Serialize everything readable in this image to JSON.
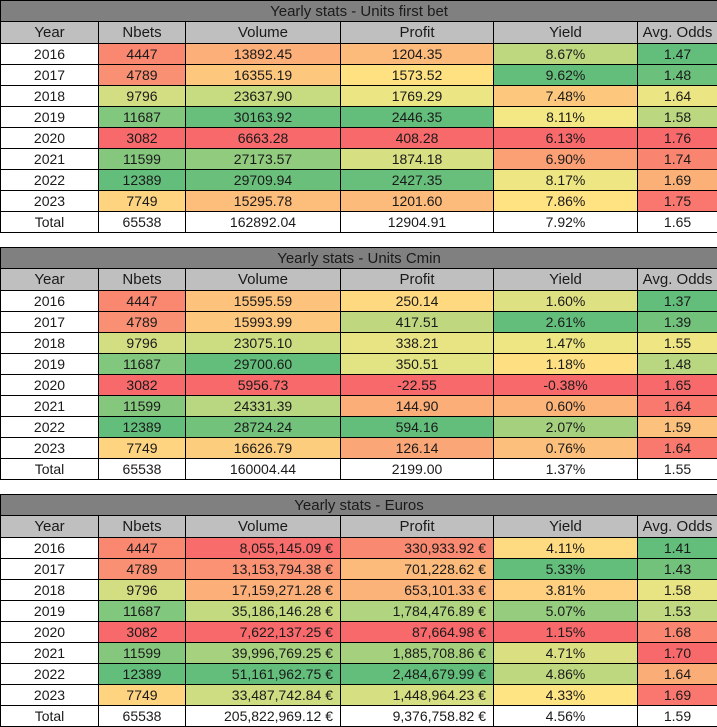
{
  "palette": {
    "title_bg": "#808080",
    "header_bg": "#BFBFBF",
    "border": "#000000",
    "text": "#1A1A1A",
    "scale_min_red": "#F8696B",
    "scale_mid_yellow": "#FFEB84",
    "scale_max_green": "#63BE7B",
    "plain_row_bg": "#FFFFFF"
  },
  "tables": [
    {
      "title": "Yearly stats - Units first bet",
      "columns": [
        "Year",
        "Nbets",
        "Volume",
        "Profit",
        "Yield",
        "Avg. Odds"
      ],
      "align": [
        "center",
        "center",
        "center",
        "center",
        "center",
        "center"
      ],
      "rows": [
        {
          "values": [
            "2016",
            "4447",
            "13892.45",
            "1204.35",
            "8.67%",
            "1.47"
          ],
          "colors": [
            "#FFFFFF",
            "#FA8871",
            "#FCAF79",
            "#FCBB7B",
            "#BED880",
            "#63BE7B"
          ]
        },
        {
          "values": [
            "2017",
            "4789",
            "16355.19",
            "1573.52",
            "9.62%",
            "1.48"
          ],
          "colors": [
            "#FFFFFF",
            "#FA9073",
            "#FDC87D",
            "#FFE182",
            "#63BE7B",
            "#6BC07B"
          ]
        },
        {
          "values": [
            "2018",
            "9796",
            "23637.90",
            "1769.29",
            "7.48%",
            "1.64"
          ],
          "colors": [
            "#FFFFFF",
            "#D3DE82",
            "#C7DB81",
            "#EBE583",
            "#FDC87D",
            "#EBE583"
          ]
        },
        {
          "values": [
            "2019",
            "11687",
            "30163.92",
            "2446.35",
            "8.11%",
            "1.58"
          ],
          "colors": [
            "#FFFFFF",
            "#81C77D",
            "#67BF7B",
            "#63BE7B",
            "#F3E883",
            "#BBD780"
          ]
        },
        {
          "values": [
            "2020",
            "3082",
            "6663.28",
            "408.28",
            "6.13%",
            "1.76"
          ],
          "colors": [
            "#FFFFFF",
            "#F8696B",
            "#F8696B",
            "#F8696B",
            "#F8696B",
            "#F8696B"
          ]
        },
        {
          "values": [
            "2021",
            "11599",
            "27173.57",
            "1874.18",
            "6.90%",
            "1.74"
          ],
          "colors": [
            "#FFFFFF",
            "#85C87D",
            "#91CB7E",
            "#D6DF82",
            "#FB9F75",
            "#F98470"
          ]
        },
        {
          "values": [
            "2022",
            "12389",
            "29709.94",
            "2427.35",
            "8.17%",
            "1.69"
          ],
          "colors": [
            "#FFFFFF",
            "#63BE7B",
            "#6AC07B",
            "#67BF7B",
            "#EDE683",
            "#FBB078"
          ]
        },
        {
          "values": [
            "2023",
            "7749",
            "15295.78",
            "1201.60",
            "7.86%",
            "1.75"
          ],
          "colors": [
            "#FFFFFF",
            "#FED480",
            "#FDBD7B",
            "#FCBB7B",
            "#FFE282",
            "#F9776E"
          ]
        },
        {
          "values": [
            "Total",
            "65538",
            "162892.04",
            "12904.91",
            "7.92%",
            "1.65"
          ],
          "colors": [
            "#FFFFFF",
            "#FFFFFF",
            "#FFFFFF",
            "#FFFFFF",
            "#FFFFFF",
            "#FFFFFF"
          ]
        }
      ]
    },
    {
      "title": "Yearly stats - Units Cmin",
      "columns": [
        "Year",
        "Nbets",
        "Volume",
        "Profit",
        "Yield",
        "Avg. Odds"
      ],
      "align": [
        "center",
        "center",
        "center",
        "center",
        "center",
        "center"
      ],
      "rows": [
        {
          "values": [
            "2016",
            "4447",
            "15595.59",
            "250.14",
            "1.60%",
            "1.37"
          ],
          "colors": [
            "#FFFFFF",
            "#FA8871",
            "#FDC37C",
            "#FED980",
            "#DEE182",
            "#63BE7B"
          ]
        },
        {
          "values": [
            "2017",
            "4789",
            "15993.99",
            "417.51",
            "2.61%",
            "1.39"
          ],
          "colors": [
            "#FFFFFF",
            "#FA9073",
            "#FDC77D",
            "#BFD880",
            "#63BE7B",
            "#72C27C"
          ]
        },
        {
          "values": [
            "2018",
            "9796",
            "23075.10",
            "338.21",
            "1.47%",
            "1.55"
          ],
          "colors": [
            "#FFFFFF",
            "#D3DE82",
            "#CCDC81",
            "#E8E483",
            "#EDE683",
            "#EFE683"
          ]
        },
        {
          "values": [
            "2019",
            "11687",
            "29700.60",
            "350.51",
            "1.18%",
            "1.48"
          ],
          "colors": [
            "#FFFFFF",
            "#81C77D",
            "#63BE7B",
            "#E2E382",
            "#FEE082",
            "#B9D780"
          ]
        },
        {
          "values": [
            "2020",
            "3082",
            "5956.73",
            "-22.55",
            "-0.38%",
            "1.65"
          ],
          "colors": [
            "#FFFFFF",
            "#F8696B",
            "#F8696B",
            "#F8696B",
            "#F8696B",
            "#F8696B"
          ]
        },
        {
          "values": [
            "2021",
            "11599",
            "24331.39",
            "144.90",
            "0.60%",
            "1.64"
          ],
          "colors": [
            "#FFFFFF",
            "#85C87D",
            "#B8D780",
            "#FCAE78",
            "#FCB479",
            "#F9796E"
          ]
        },
        {
          "values": [
            "2022",
            "12389",
            "28724.24",
            "594.16",
            "2.07%",
            "1.59"
          ],
          "colors": [
            "#FFFFFF",
            "#63BE7B",
            "#72C27C",
            "#63BE7B",
            "#A5D17F",
            "#FCC17C"
          ]
        },
        {
          "values": [
            "2023",
            "7749",
            "16626.79",
            "126.14",
            "0.76%",
            "1.64"
          ],
          "colors": [
            "#FFFFFF",
            "#FED480",
            "#FDCD7E",
            "#FBA677",
            "#FDC07C",
            "#F9796E"
          ]
        },
        {
          "values": [
            "Total",
            "65538",
            "160004.44",
            "2199.00",
            "1.37%",
            "1.55"
          ],
          "colors": [
            "#FFFFFF",
            "#FFFFFF",
            "#FFFFFF",
            "#FFFFFF",
            "#FFFFFF",
            "#FFFFFF"
          ]
        }
      ]
    },
    {
      "title": "Yearly stats - Euros",
      "columns": [
        "Year",
        "Nbets",
        "Volume",
        "Profit",
        "Yield",
        "Avg. Odds"
      ],
      "align": [
        "center",
        "center",
        "right",
        "right",
        "center",
        "center"
      ],
      "rows": [
        {
          "values": [
            "2016",
            "4447",
            "8,055,145.09 €",
            "330,933.92 €",
            "4.11%",
            "1.41"
          ],
          "colors": [
            "#FFFFFF",
            "#FA8871",
            "#F86C6C",
            "#FA8971",
            "#FEDB81",
            "#63BE7B"
          ]
        },
        {
          "values": [
            "2017",
            "4789",
            "13,153,794.38 €",
            "701,228.62 €",
            "5.33%",
            "1.43"
          ],
          "colors": [
            "#FFFFFF",
            "#FA9073",
            "#FA9273",
            "#FCBA7B",
            "#63BE7B",
            "#72C27C"
          ]
        },
        {
          "values": [
            "2018",
            "9796",
            "17,159,271.28 €",
            "653,101.33 €",
            "3.81%",
            "1.58"
          ],
          "colors": [
            "#FFFFFF",
            "#D3DE82",
            "#FCAF79",
            "#FCB379",
            "#FED07F",
            "#E8E483"
          ]
        },
        {
          "values": [
            "2019",
            "11687",
            "35,186,146.28 €",
            "1,784,476.89 €",
            "5.07%",
            "1.53"
          ],
          "colors": [
            "#FFFFFF",
            "#81C77D",
            "#C3DA81",
            "#B0D480",
            "#95CC7E",
            "#C1D980"
          ]
        },
        {
          "values": [
            "2020",
            "3082",
            "7,622,137.25 €",
            "87,664.98 €",
            "1.15%",
            "1.68"
          ],
          "colors": [
            "#FFFFFF",
            "#F8696B",
            "#F8696B",
            "#F8696B",
            "#F8696B",
            "#FA8671"
          ]
        },
        {
          "values": [
            "2021",
            "11599",
            "39,996,769.25 €",
            "1,885,708.86 €",
            "4.71%",
            "1.70"
          ],
          "colors": [
            "#FFFFFF",
            "#85C87D",
            "#A6D17F",
            "#A5D17F",
            "#DAE082",
            "#F8696B"
          ]
        },
        {
          "values": [
            "2022",
            "12389",
            "51,161,962.75 €",
            "2,484,679.99 €",
            "4.86%",
            "1.64"
          ],
          "colors": [
            "#FFFFFF",
            "#63BE7B",
            "#63BE7B",
            "#63BE7B",
            "#BED880",
            "#FBAD77"
          ]
        },
        {
          "values": [
            "2023",
            "7749",
            "33,487,742.84 €",
            "1,448,964.23 €",
            "4.33%",
            "1.69"
          ],
          "colors": [
            "#FFFFFF",
            "#FED480",
            "#CEDD81",
            "#D6DF82",
            "#FFE483",
            "#F9776E"
          ]
        },
        {
          "values": [
            "Total",
            "65538",
            "205,822,969.12 €",
            "9,376,758.82 €",
            "4.56%",
            "1.59"
          ],
          "colors": [
            "#FFFFFF",
            "#FFFFFF",
            "#FFFFFF",
            "#FFFFFF",
            "#FFFFFF",
            "#FFFFFF"
          ]
        }
      ]
    }
  ]
}
